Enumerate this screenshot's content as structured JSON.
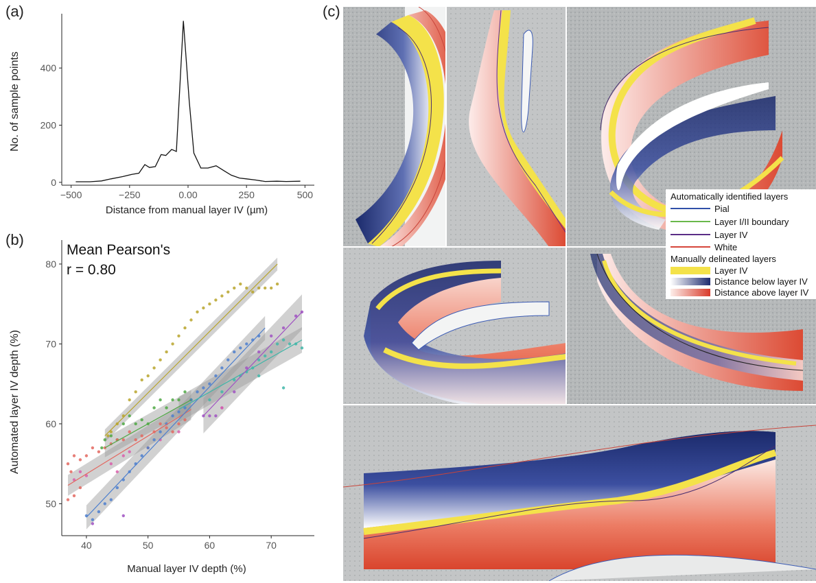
{
  "panels": {
    "a": "(a)",
    "b": "(b)",
    "c": "(c)"
  },
  "chart_data": [
    {
      "type": "line",
      "panel": "(a)",
      "title": "",
      "xlabel": "Distance from manual layer IV (µm)",
      "ylabel": "No. of sample points",
      "xlim": [
        -540,
        540
      ],
      "ylim": [
        -10,
        590
      ],
      "xticks": [
        -500,
        -250,
        0,
        250,
        500
      ],
      "xtick_labels": [
        "−500",
        "−250",
        "0.00",
        "250",
        "500"
      ],
      "yticks": [
        0,
        200,
        400
      ],
      "grid": false,
      "x": [
        -480,
        -420,
        -370,
        -330,
        -280,
        -240,
        -210,
        -185,
        -165,
        -140,
        -115,
        -95,
        -70,
        -50,
        -20,
        5,
        25,
        55,
        85,
        120,
        155,
        185,
        220,
        250,
        290,
        330,
        380,
        420,
        480
      ],
      "y": [
        2,
        2,
        5,
        12,
        20,
        28,
        32,
        62,
        52,
        55,
        97,
        94,
        115,
        108,
        565,
        285,
        102,
        50,
        50,
        58,
        40,
        25,
        15,
        12,
        8,
        3,
        4,
        3,
        4
      ]
    },
    {
      "type": "scatter",
      "panel": "(b)",
      "title": "",
      "annotation": [
        "Mean Pearson's",
        "r = 0.80"
      ],
      "xlabel": "Manual layer IV depth (%)",
      "ylabel": "Automated layer IV depth (%)",
      "xlim": [
        36,
        77
      ],
      "ylim": [
        46,
        83
      ],
      "xticks": [
        40,
        50,
        60,
        70
      ],
      "yticks": [
        50,
        60,
        70,
        80
      ],
      "grid": false,
      "series": [
        {
          "color": "#b8a42c",
          "fit": [
            [
              43,
              58.5
            ],
            [
              71,
              80
            ]
          ],
          "band": 0.8,
          "points": [
            [
              43.5,
              58.5
            ],
            [
              44,
              59
            ],
            [
              45,
              60
            ],
            [
              46,
              61
            ],
            [
              47,
              63
            ],
            [
              48,
              64
            ],
            [
              49,
              65.5
            ],
            [
              50,
              66
            ],
            [
              51,
              67
            ],
            [
              52,
              68
            ],
            [
              53,
              69
            ],
            [
              54,
              70
            ],
            [
              55,
              71
            ],
            [
              56,
              72
            ],
            [
              57,
              73
            ],
            [
              58,
              74
            ],
            [
              59,
              74.5
            ],
            [
              60,
              75
            ],
            [
              61,
              75.5
            ],
            [
              62,
              76
            ],
            [
              63,
              76.5
            ],
            [
              64,
              77
            ],
            [
              65,
              77.5
            ],
            [
              66,
              77
            ],
            [
              67,
              76.5
            ],
            [
              68,
              77
            ],
            [
              69,
              77
            ],
            [
              70,
              77
            ],
            [
              71,
              77.5
            ]
          ]
        },
        {
          "color": "#4fa844",
          "fit": [
            [
              43,
              57
            ],
            [
              57,
              63
            ]
          ],
          "band": 1.2,
          "points": [
            [
              42.5,
              57
            ],
            [
              43,
              58
            ],
            [
              44,
              58.5
            ],
            [
              45,
              58
            ],
            [
              46,
              60
            ],
            [
              47,
              61
            ],
            [
              48,
              60
            ],
            [
              49,
              60.5
            ],
            [
              50,
              60
            ],
            [
              51,
              62
            ],
            [
              52,
              63
            ],
            [
              53,
              62
            ],
            [
              54,
              63
            ],
            [
              55,
              63
            ],
            [
              56,
              64
            ],
            [
              57,
              63
            ]
          ]
        },
        {
          "color": "#e3675f",
          "fit": [
            [
              37,
              52.3
            ],
            [
              57,
              61.8
            ]
          ],
          "band": 1.3,
          "points": [
            [
              37,
              55
            ],
            [
              37.5,
              54
            ],
            [
              38,
              56
            ],
            [
              39,
              55.5
            ],
            [
              40,
              56
            ],
            [
              41,
              57
            ],
            [
              42,
              56.5
            ],
            [
              43,
              57
            ],
            [
              44,
              57.5
            ],
            [
              45,
              58
            ],
            [
              46,
              58
            ],
            [
              47,
              59
            ],
            [
              48,
              58
            ],
            [
              49,
              58.5
            ],
            [
              50,
              57
            ],
            [
              51,
              59
            ],
            [
              52,
              60
            ],
            [
              53,
              59.5
            ],
            [
              54,
              59
            ],
            [
              55,
              60
            ],
            [
              56,
              60.5
            ],
            [
              37,
              50.5
            ],
            [
              38,
              51
            ],
            [
              39,
              52
            ]
          ]
        },
        {
          "color": "#4d7fce",
          "fit": [
            [
              40,
              48.3
            ],
            [
              69,
              72
            ]
          ],
          "band": 1.5,
          "points": [
            [
              40,
              48.5
            ],
            [
              41,
              48
            ],
            [
              42,
              49
            ],
            [
              43,
              50
            ],
            [
              44,
              50.5
            ],
            [
              45,
              52
            ],
            [
              46,
              53
            ],
            [
              47,
              54
            ],
            [
              48,
              55
            ],
            [
              49,
              56
            ],
            [
              50,
              57
            ],
            [
              51,
              58
            ],
            [
              52,
              59
            ],
            [
              53,
              60
            ],
            [
              54,
              61
            ],
            [
              55,
              61.5
            ],
            [
              56,
              62
            ],
            [
              57,
              63
            ],
            [
              58,
              64
            ],
            [
              59,
              64.5
            ],
            [
              60,
              65
            ],
            [
              61,
              66
            ],
            [
              62,
              67
            ],
            [
              63,
              68
            ],
            [
              64,
              69
            ],
            [
              65,
              69.5
            ],
            [
              66,
              70
            ],
            [
              67,
              70.5
            ],
            [
              68,
              71
            ]
          ]
        },
        {
          "color": "#3fb6a8",
          "fit": [
            [
              55,
              61.8
            ],
            [
              75,
              70.5
            ]
          ],
          "band": 1.6,
          "points": [
            [
              60,
              63
            ],
            [
              62,
              64
            ],
            [
              64,
              65.5
            ],
            [
              65,
              66
            ],
            [
              66,
              66.5
            ],
            [
              67,
              67
            ],
            [
              68,
              68
            ],
            [
              69,
              68.5
            ],
            [
              70,
              69
            ],
            [
              71,
              70
            ],
            [
              72,
              70.5
            ],
            [
              73,
              70
            ],
            [
              74,
              70
            ],
            [
              75,
              69.5
            ],
            [
              72,
              64.5
            ],
            [
              68,
              66
            ]
          ]
        },
        {
          "color": "#a052c2",
          "fit": [
            [
              59,
              61
            ],
            [
              75,
              74
            ]
          ],
          "band": 2.2,
          "points": [
            [
              59,
              61
            ],
            [
              60,
              61
            ],
            [
              61,
              61
            ],
            [
              62,
              62
            ],
            [
              64,
              64
            ],
            [
              66,
              67
            ],
            [
              68,
              69
            ],
            [
              70,
              71
            ],
            [
              72,
              72
            ],
            [
              74,
              73.5
            ],
            [
              75,
              74
            ],
            [
              46,
              48.5
            ],
            [
              41,
              47.5
            ]
          ]
        },
        {
          "color": "#d95fab",
          "fit": null,
          "band": 0,
          "points": [
            [
              38,
              53
            ],
            [
              39,
              54
            ],
            [
              40,
              53.5
            ],
            [
              44,
              55
            ],
            [
              45,
              54
            ],
            [
              46,
              56
            ],
            [
              47,
              56.5
            ],
            [
              52,
              58
            ],
            [
              55,
              59
            ],
            [
              62,
              62
            ]
          ]
        }
      ]
    }
  ],
  "legend": {
    "auto_header": "Automatically identified layers",
    "auto_items": [
      {
        "label": "Pial",
        "color": "#2f4fa8"
      },
      {
        "label": "Layer I/II boundary",
        "color": "#69b84a"
      },
      {
        "label": "Layer IV",
        "color": "#5a2d86"
      },
      {
        "label": "White",
        "color": "#d6453a"
      }
    ],
    "manual_header": "Manually delineated layers",
    "manual_items": [
      {
        "label": "Layer IV",
        "kind": "solid",
        "color": "#f4e24a"
      },
      {
        "label": "Distance below layer IV",
        "kind": "gradient-blue",
        "color": "#1d2a6e"
      },
      {
        "label": "Distance above layer IV",
        "kind": "gradient-red",
        "color": "#d83a2a"
      }
    ]
  }
}
